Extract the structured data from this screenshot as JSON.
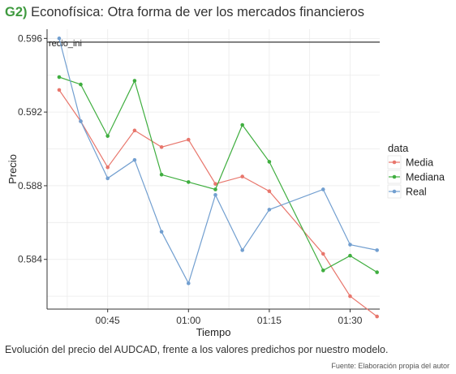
{
  "header": {
    "tag": "G2)",
    "title": "Econofísica: Otra forma de ver los mercados financieros"
  },
  "caption": "Evolución del precio del AUDCAD, frente a los valores predichos por nuestro modelo.",
  "source": "Fuente: Elaboración propia del autor",
  "chart_data": {
    "type": "line",
    "xlabel": "Tiempo",
    "ylabel": "Precio",
    "x_unit": "minutes",
    "x_ticks": [
      {
        "value": 45,
        "label": "00:45"
      },
      {
        "value": 60,
        "label": "01:00"
      },
      {
        "value": 75,
        "label": "01:15"
      },
      {
        "value": 90,
        "label": "01:30"
      }
    ],
    "xlim": [
      33.75,
      95.5
    ],
    "y_ticks": [
      0.584,
      0.588,
      0.592,
      0.596
    ],
    "ylim": [
      0.5813,
      0.5965
    ],
    "grid": true,
    "legend": {
      "title": "data",
      "position": "right"
    },
    "reference_line": {
      "y": 0.5958,
      "label": "recio_ini"
    },
    "series": [
      {
        "name": "Media",
        "color": "#e8766c",
        "x": [
          36,
          40,
          45,
          50,
          55,
          60,
          65,
          70,
          75,
          85,
          90,
          95
        ],
        "values": [
          0.5932,
          0.5915,
          0.589,
          0.591,
          0.5901,
          0.5905,
          0.5881,
          0.5885,
          0.5877,
          0.5843,
          0.582,
          0.5809
        ]
      },
      {
        "name": "Mediana",
        "color": "#3fae3f",
        "x": [
          36,
          40,
          45,
          50,
          55,
          60,
          65,
          70,
          75,
          85,
          90,
          95
        ],
        "values": [
          0.5939,
          0.5935,
          0.5907,
          0.5937,
          0.5886,
          0.5882,
          0.5878,
          0.5913,
          0.5893,
          0.5834,
          0.5842,
          0.5833
        ]
      },
      {
        "name": "Real",
        "color": "#729fd0",
        "x": [
          36,
          40,
          45,
          50,
          55,
          60,
          65,
          70,
          75,
          85,
          90,
          95
        ],
        "values": [
          0.596,
          0.5915,
          0.5884,
          0.5894,
          0.5855,
          0.5827,
          0.5875,
          0.5845,
          0.5867,
          0.5878,
          0.5848,
          0.5845
        ]
      }
    ]
  }
}
